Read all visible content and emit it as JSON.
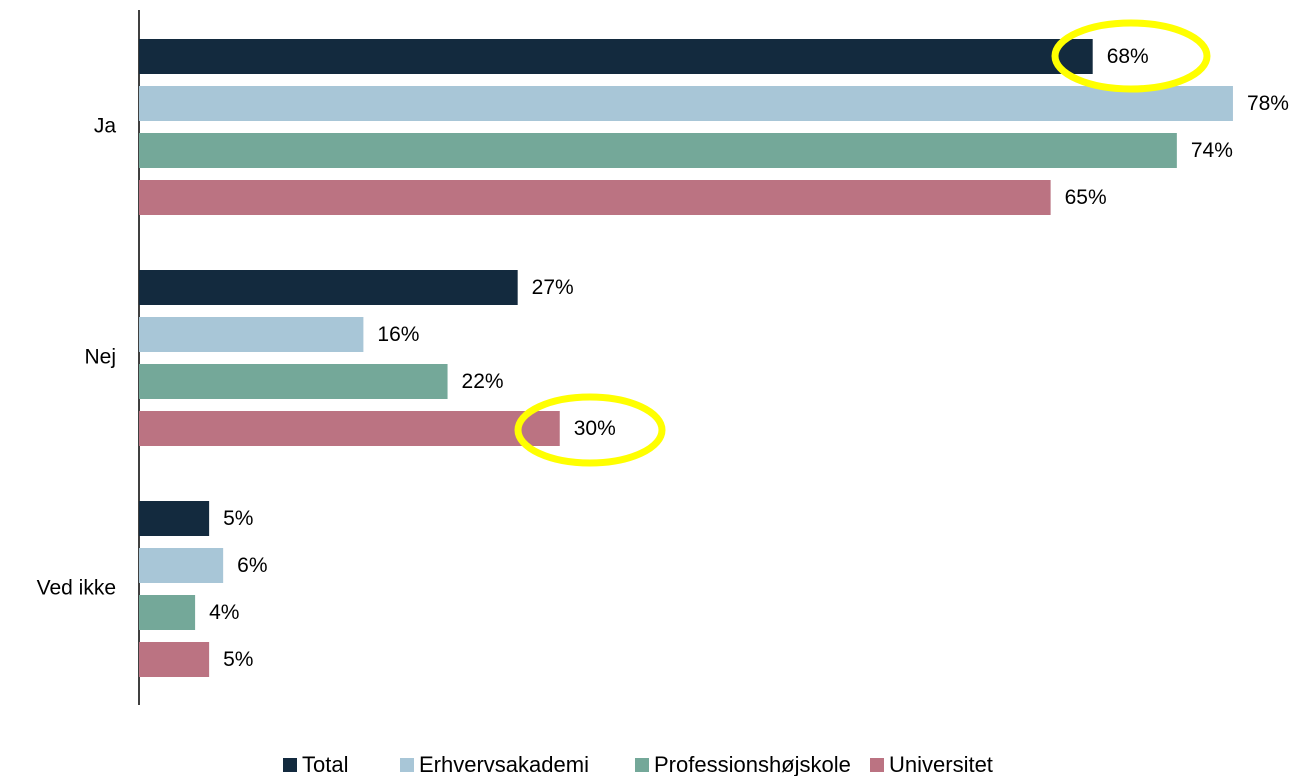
{
  "chart_data": {
    "type": "bar",
    "orientation": "horizontal",
    "categories": [
      "Ja",
      "Nej",
      "Ved ikke"
    ],
    "series": [
      {
        "name": "Total",
        "color": "#132a3e",
        "values": [
          68,
          27,
          5
        ],
        "value_labels": [
          "68%",
          "27%",
          "5%"
        ]
      },
      {
        "name": "Erhvervsakademi",
        "color": "#a8c6d7",
        "values": [
          78,
          16,
          6
        ],
        "value_labels": [
          "78%",
          "16%",
          "6%"
        ]
      },
      {
        "name": "Professionshøjskole",
        "color": "#74a899",
        "values": [
          74,
          22,
          4
        ],
        "value_labels": [
          "74%",
          "22%",
          "4%"
        ]
      },
      {
        "name": "Universitet",
        "color": "#bb7382",
        "values": [
          65,
          30,
          5
        ],
        "value_labels": [
          "65%",
          "30%",
          "5%"
        ]
      }
    ],
    "xlim": [
      0,
      80
    ],
    "legend": "bottom"
  }
}
